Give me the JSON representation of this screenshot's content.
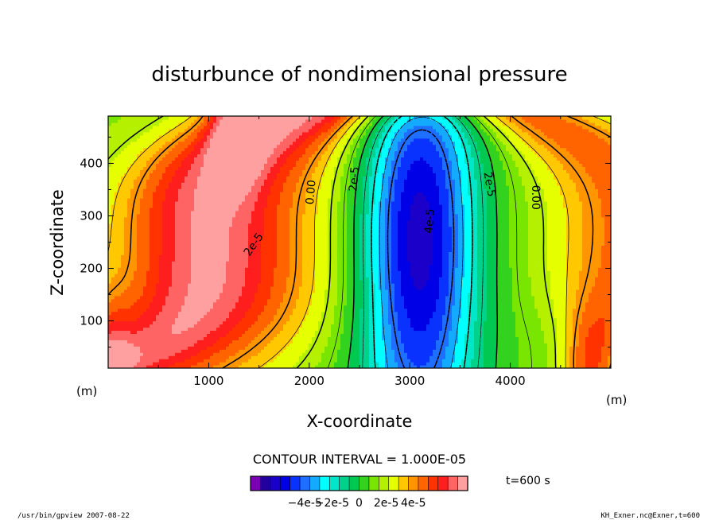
{
  "chart_data": {
    "type": "heatmap",
    "title": "disturbunce of nondimensional pressure",
    "xlabel": "X-coordinate",
    "ylabel": "Z-coordinate",
    "x_unit": "(m)",
    "z_unit": "(m)",
    "xlim": [
      0,
      5000
    ],
    "ylim": [
      10,
      490
    ],
    "x_ticks": [
      "1000",
      "2000",
      "3000",
      "4000"
    ],
    "y_ticks": [
      "100",
      "200",
      "300",
      "400"
    ],
    "x_tick_values": [
      1000,
      2000,
      3000,
      4000
    ],
    "y_tick_values": [
      100,
      200,
      300,
      400
    ],
    "contour_interval_label": "CONTOUR INTERVAL = 1.000E-05",
    "time_label": "t=600 s",
    "colorbar": {
      "levels_min": -8e-05,
      "levels_max": 8e-05,
      "tick_labels": [
        "−4e-5",
        "−2e-5",
        "0",
        "2e-5",
        "4e-5"
      ],
      "tick_values": [
        -4e-05,
        -2e-05,
        0,
        2e-05,
        4e-05
      ],
      "colors": [
        "#7a00b4",
        "#2200a0",
        "#1a00c8",
        "#0000e6",
        "#0a32ff",
        "#1e6eff",
        "#14aaff",
        "#00ffff",
        "#00e6c8",
        "#00d28c",
        "#00c850",
        "#32d21e",
        "#78e600",
        "#b4f000",
        "#e6ff00",
        "#ffc800",
        "#ff9600",
        "#ff6400",
        "#ff3200",
        "#ff1e1e",
        "#ff6464",
        "#ffa0a0"
      ]
    },
    "contour_labels": [
      {
        "text": "2e-5",
        "x": 1450,
        "z": 245,
        "angle": -55
      },
      {
        "text": "0.00",
        "x": 2020,
        "z": 345,
        "angle": -85
      },
      {
        "text": "2e-5",
        "x": 2450,
        "z": 370,
        "angle": -85
      },
      {
        "text": "4e-5",
        "x": 3200,
        "z": 290,
        "angle": -85
      },
      {
        "text": "2e-5",
        "x": 3790,
        "z": 360,
        "angle": 80
      },
      {
        "text": "0.00",
        "x": 4250,
        "z": 335,
        "angle": 90
      }
    ]
  },
  "footer": {
    "left": "/usr/bin/gpview  2007-08-22",
    "right": "KH_Exner.nc@Exner,t=600"
  }
}
